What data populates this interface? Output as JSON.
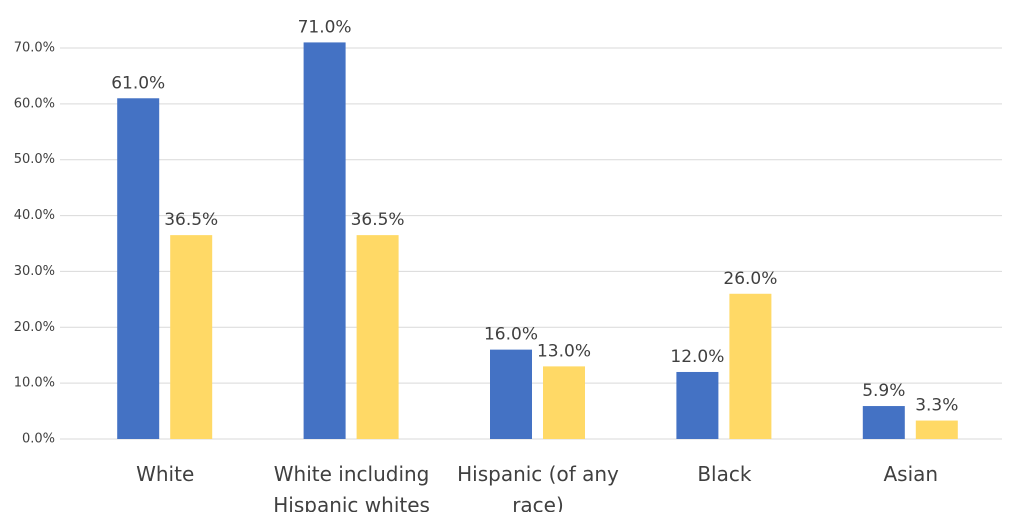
{
  "chart_data": {
    "type": "bar",
    "categories": [
      "White",
      "White including Hispanic whites",
      "Hispanic (of any race)",
      "Black",
      "Asian"
    ],
    "series": [
      {
        "color": "#4472c4",
        "values": [
          61.0,
          71.0,
          16.0,
          12.0,
          5.9
        ],
        "value_labels": [
          "61.0%",
          "71.0%",
          "16.0%",
          "12.0%",
          "5.9%"
        ]
      },
      {
        "color": "#ffd966",
        "values": [
          36.5,
          36.5,
          13.0,
          26.0,
          3.3
        ],
        "value_labels": [
          "36.5%",
          "36.5%",
          "13.0%",
          "26.0%",
          "3.3%"
        ]
      }
    ],
    "ylim": [
      0,
      70
    ],
    "yticks": [
      {
        "value": 0,
        "label": "0.0%"
      },
      {
        "value": 10,
        "label": "10.0%"
      },
      {
        "value": 20,
        "label": "20.0%"
      },
      {
        "value": 30,
        "label": "30.0%"
      },
      {
        "value": 40,
        "label": "40.0%"
      },
      {
        "value": 50,
        "label": "50.0%"
      },
      {
        "value": 60,
        "label": "60.0%"
      },
      {
        "value": 70,
        "label": "70.0%"
      }
    ],
    "grid": true
  }
}
